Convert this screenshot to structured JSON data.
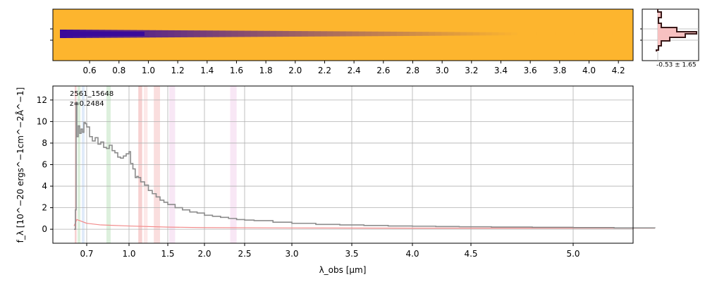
{
  "colors": {
    "spectrum": "#8c8c8c",
    "error": "#f28b8b",
    "axis": "#000000",
    "grid": "#b0b0b0",
    "cmap_bg": "#fdb52e",
    "cmap_trace": "#3a0a9a",
    "hist_line": "#3a1a1a",
    "hist_fill": "#f7c1c1"
  },
  "chart_data": [
    {
      "id": "spectrum_2d",
      "type": "heatmap",
      "colormap": "plasma",
      "xticks": [
        "0.6",
        "0.8",
        "1.0",
        "1.2",
        "1.4",
        "1.6",
        "1.8",
        "2.0",
        "2.2",
        "2.4",
        "2.6",
        "2.8",
        "3.0",
        "3.2",
        "3.4",
        "3.6",
        "3.8",
        "4.0",
        "4.2"
      ],
      "xlim": [
        0.35,
        4.3
      ],
      "trace_profile": "bright core at short wavelengths fading toward long wavelengths"
    },
    {
      "id": "profile_hist",
      "type": "line",
      "annotation": "-0.53 ± 1.65"
    },
    {
      "id": "spectrum_1d",
      "type": "line",
      "object_label": "2561_15648",
      "redshift_label": "z=0.2484",
      "xlabel": "λ_obs [μm]",
      "ylabel": "f_λ [10^−20 ergs^−1cm^−2Å^−1]",
      "xticks": [
        "0.7",
        "1.0",
        "1.5",
        "2.0",
        "2.5",
        "3.0",
        "3.5",
        "4.0",
        "4.5",
        "5.0"
      ],
      "yticks": [
        "0",
        "2",
        "4",
        "6",
        "8",
        "10",
        "12"
      ],
      "ylim": [
        -1.3,
        13.3
      ],
      "grid": true,
      "x": [
        0.61,
        0.62,
        0.625,
        0.63,
        0.64,
        0.65,
        0.66,
        0.67,
        0.68,
        0.69,
        0.7,
        0.72,
        0.74,
        0.76,
        0.78,
        0.8,
        0.82,
        0.84,
        0.86,
        0.88,
        0.9,
        0.92,
        0.94,
        0.96,
        0.98,
        1.0,
        1.02,
        1.05,
        1.08,
        1.1,
        1.12,
        1.15,
        1.2,
        1.25,
        1.3,
        1.35,
        1.4,
        1.45,
        1.5,
        1.6,
        1.7,
        1.8,
        1.9,
        2.0,
        2.1,
        2.2,
        2.3,
        2.4,
        2.5,
        2.6,
        2.8,
        3.0,
        3.2,
        3.4,
        3.6,
        3.8,
        4.0,
        4.2,
        4.4,
        4.6,
        4.8,
        5.0,
        5.2,
        5.4
      ],
      "y": [
        0.0,
        1.8,
        11.8,
        8.6,
        9.6,
        8.9,
        9.3,
        9.0,
        9.9,
        9.8,
        9.5,
        8.6,
        8.2,
        8.5,
        7.9,
        8.1,
        7.6,
        7.5,
        7.8,
        7.3,
        7.1,
        6.7,
        6.6,
        6.8,
        7.0,
        7.2,
        6.1,
        5.6,
        4.8,
        4.9,
        4.8,
        4.4,
        4.1,
        3.6,
        3.3,
        3.0,
        2.7,
        2.5,
        2.3,
        2.0,
        1.8,
        1.6,
        1.5,
        1.3,
        1.2,
        1.1,
        1.0,
        0.9,
        0.85,
        0.8,
        0.65,
        0.55,
        0.45,
        0.4,
        0.35,
        0.3,
        0.28,
        0.25,
        0.23,
        0.2,
        0.18,
        0.15,
        0.12,
        0.1
      ],
      "err_x": [
        0.61,
        0.63,
        0.7,
        0.8,
        1.0,
        1.5,
        2.0,
        3.0,
        4.0,
        5.4
      ],
      "err_y": [
        0.3,
        0.9,
        0.55,
        0.4,
        0.3,
        0.2,
        0.15,
        0.12,
        0.1,
        0.1
      ],
      "bands": [
        {
          "lo": 0.615,
          "hi": 0.628,
          "color": "#f5c6c6"
        },
        {
          "lo": 0.635,
          "hi": 0.655,
          "color": "#d5ecd5"
        },
        {
          "lo": 0.665,
          "hi": 0.685,
          "color": "#d8e6f7"
        },
        {
          "lo": 0.84,
          "hi": 0.87,
          "color": "#d5ecd5"
        },
        {
          "lo": 1.12,
          "hi": 1.17,
          "color": "#f5c6c6"
        },
        {
          "lo": 1.19,
          "hi": 1.24,
          "color": "#fde3e3"
        },
        {
          "lo": 1.32,
          "hi": 1.4,
          "color": "#f9d6d6"
        },
        {
          "lo": 1.52,
          "hi": 1.6,
          "color": "#f6e1f3"
        },
        {
          "lo": 2.32,
          "hi": 2.4,
          "color": "#f6e1f3"
        }
      ]
    }
  ]
}
